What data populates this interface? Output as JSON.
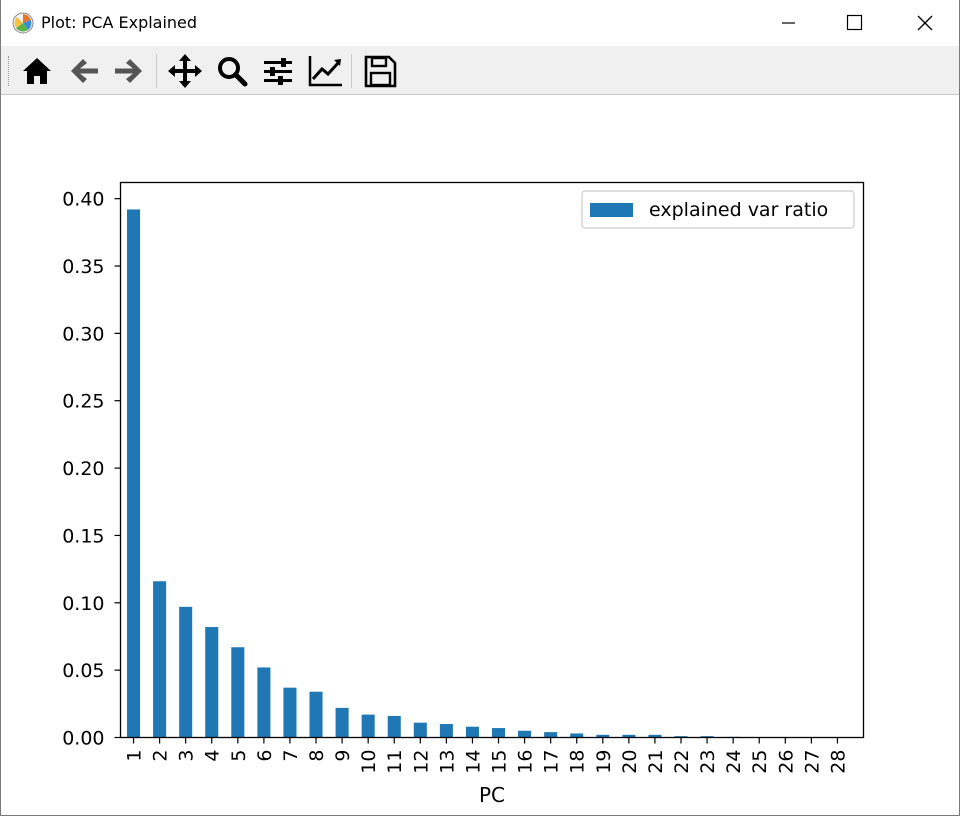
{
  "window": {
    "title": "Plot: PCA Explained",
    "controls": [
      "minimize",
      "maximize",
      "close"
    ]
  },
  "toolbar": {
    "buttons": [
      "home-icon",
      "back-icon",
      "forward-icon",
      "pan-icon",
      "zoom-icon",
      "configure-subplots-icon",
      "edit-axis-icon",
      "save-icon"
    ]
  },
  "chart_data": {
    "type": "bar",
    "xlabel": "PC",
    "ylabel": "",
    "categories": [
      "1",
      "2",
      "3",
      "4",
      "5",
      "6",
      "7",
      "8",
      "9",
      "10",
      "11",
      "12",
      "13",
      "14",
      "15",
      "16",
      "17",
      "18",
      "19",
      "20",
      "21",
      "22",
      "23",
      "24",
      "25",
      "26",
      "27",
      "28"
    ],
    "series": [
      {
        "name": "explained var ratio",
        "color": "#1f77b4",
        "values": [
          0.392,
          0.116,
          0.097,
          0.082,
          0.067,
          0.052,
          0.037,
          0.034,
          0.022,
          0.017,
          0.016,
          0.011,
          0.01,
          0.008,
          0.007,
          0.005,
          0.004,
          0.003,
          0.002,
          0.002,
          0.002,
          0.001,
          0.001,
          0.0005,
          0.0003,
          0.0002,
          0.0001,
          0.0001
        ]
      }
    ],
    "ylim": [
      0,
      0.412
    ],
    "yticks": [
      "0.00",
      "0.05",
      "0.10",
      "0.15",
      "0.20",
      "0.25",
      "0.30",
      "0.35",
      "0.40"
    ],
    "legend": "top-right",
    "grid": false
  }
}
